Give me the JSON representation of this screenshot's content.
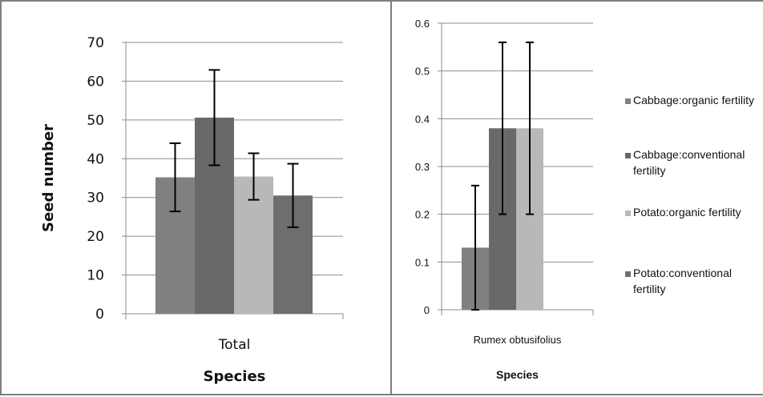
{
  "chart_data": [
    {
      "type": "bar",
      "categories": [
        "Total"
      ],
      "series": [
        {
          "values": [
            35.2
          ],
          "errors": [
            8.8
          ],
          "color": "#808080"
        },
        {
          "values": [
            50.6
          ],
          "errors": [
            12.3
          ],
          "color": "#696969"
        },
        {
          "values": [
            35.4
          ],
          "errors": [
            6.0
          ],
          "color": "#b8b8b8"
        },
        {
          "values": [
            30.5
          ],
          "errors": [
            8.2
          ],
          "color": "#6e6e6e"
        }
      ],
      "xlabel": "Species",
      "ylabel": "Seed number",
      "ylim": [
        0,
        70
      ],
      "yticks": [
        0,
        10,
        20,
        30,
        40,
        50,
        60,
        70
      ],
      "grid": true
    },
    {
      "type": "bar",
      "categories": [
        "Rumex obtusifolius"
      ],
      "series": [
        {
          "name": "Cabbage:organic fertility",
          "values": [
            0.13
          ],
          "errors": [
            0.13
          ],
          "color": "#808080"
        },
        {
          "name": "Cabbage:conventional fertility",
          "values": [
            0.38
          ],
          "errors": [
            0.18
          ],
          "color": "#696969"
        },
        {
          "name": "Potato:organic fertility",
          "values": [
            0.38
          ],
          "errors": [
            0.18
          ],
          "color": "#b8b8b8"
        },
        {
          "name": "Potato:conventional fertility",
          "values": [
            0.0
          ],
          "errors": [
            0.0
          ],
          "color": "#6e6e6e"
        }
      ],
      "xlabel": "Species",
      "ylim": [
        0,
        0.6
      ],
      "yticks": [
        "0",
        "0.1",
        "0.2",
        "0.3",
        "0.4",
        "0.5",
        "0.6"
      ],
      "grid": true,
      "legend": {
        "position": "right",
        "entries": [
          {
            "lines": [
              "Cabbage:organic fertility"
            ]
          },
          {
            "lines": [
              "Cabbage:conventional",
              "fertility"
            ]
          },
          {
            "lines": [
              "Potato:organic fertility"
            ]
          },
          {
            "lines": [
              "Potato:conventional",
              "fertility"
            ]
          }
        ]
      }
    }
  ]
}
